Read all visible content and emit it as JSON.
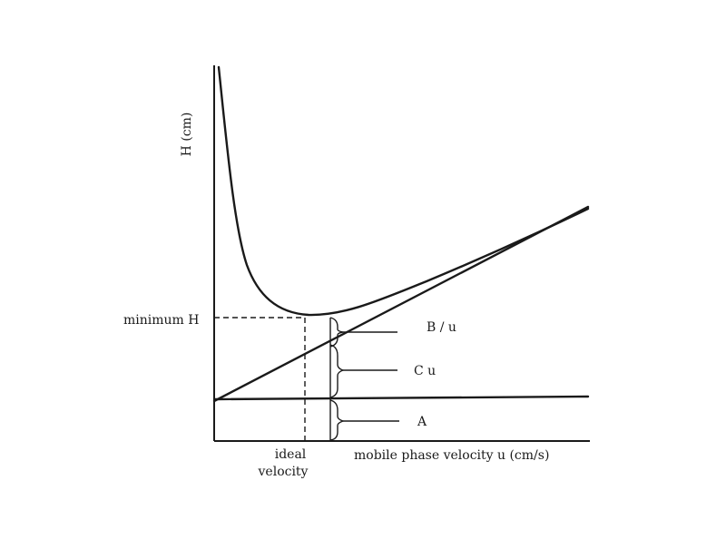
{
  "diagram": {
    "y_axis_label": "H (cm)",
    "x_axis_label": "mobile phase velocity u (cm/s)",
    "minimum_label": "minimum H",
    "ideal_velocity_label_line1": "ideal",
    "ideal_velocity_label_line2": "velocity",
    "terms": {
      "b_over_u": "B / u",
      "c_u": "C u",
      "a": "A"
    },
    "curves": [
      "van Deemter curve H",
      "A + C u",
      "A"
    ],
    "line_color": "#1a1a1a",
    "background": "#ffffff"
  }
}
